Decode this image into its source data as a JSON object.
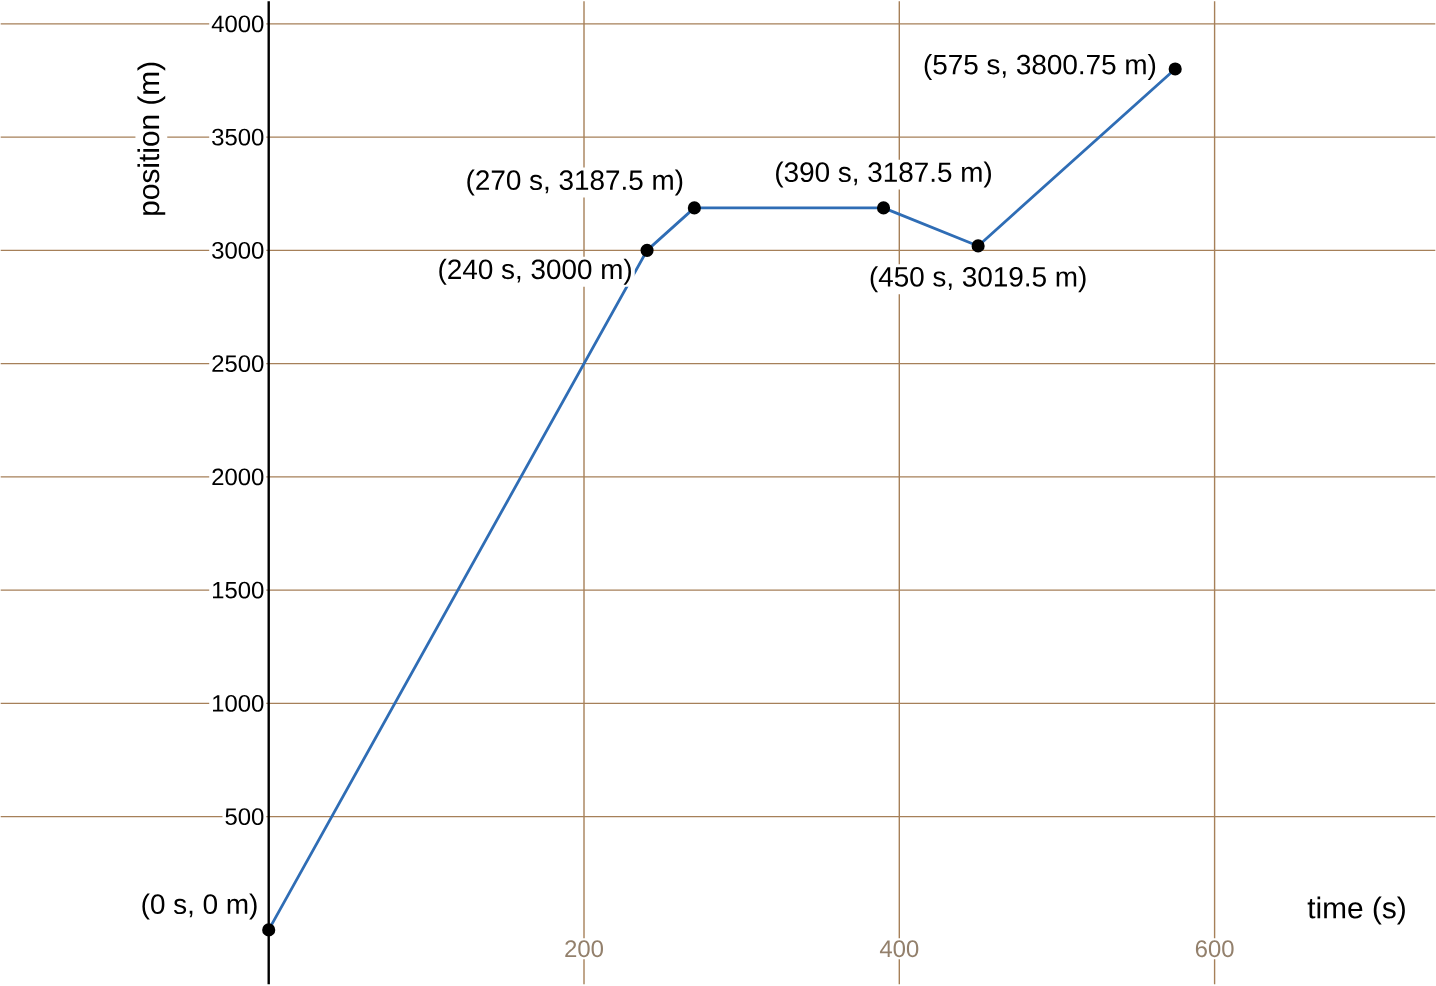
{
  "chart_data": {
    "type": "line",
    "xlabel": "time (s)",
    "ylabel": "position (m)",
    "x": [
      0,
      240,
      270,
      390,
      450,
      575
    ],
    "series": [
      {
        "color": "#2f6db5",
        "values": [
          0,
          3000,
          3187.5,
          3187.5,
          3019.5,
          3800.75
        ]
      }
    ],
    "xlim": [
      -170,
      740
    ],
    "ylim": [
      -240,
      4100
    ],
    "xticks": [
      200,
      400,
      600
    ],
    "yticks": [
      500,
      1000,
      1500,
      2000,
      2500,
      3000,
      3500,
      4000
    ],
    "grid": true,
    "marker": "circle",
    "line_style": "solid",
    "annotations": [
      {
        "text": "(0 s, 0 m)",
        "x": 0,
        "y": 0
      },
      {
        "text": "(240 s, 3000 m)",
        "x": 240,
        "y": 3000
      },
      {
        "text": "(270 s, 3187.5 m)",
        "x": 270,
        "y": 3187.5
      },
      {
        "text": "(390 s, 3187.5 m)",
        "x": 390,
        "y": 3187.5
      },
      {
        "text": "(450 s, 3019.5 m)",
        "x": 450,
        "y": 3019.5
      },
      {
        "text": "(575 s, 3800.75 m)",
        "x": 575,
        "y": 3800.75
      }
    ]
  }
}
